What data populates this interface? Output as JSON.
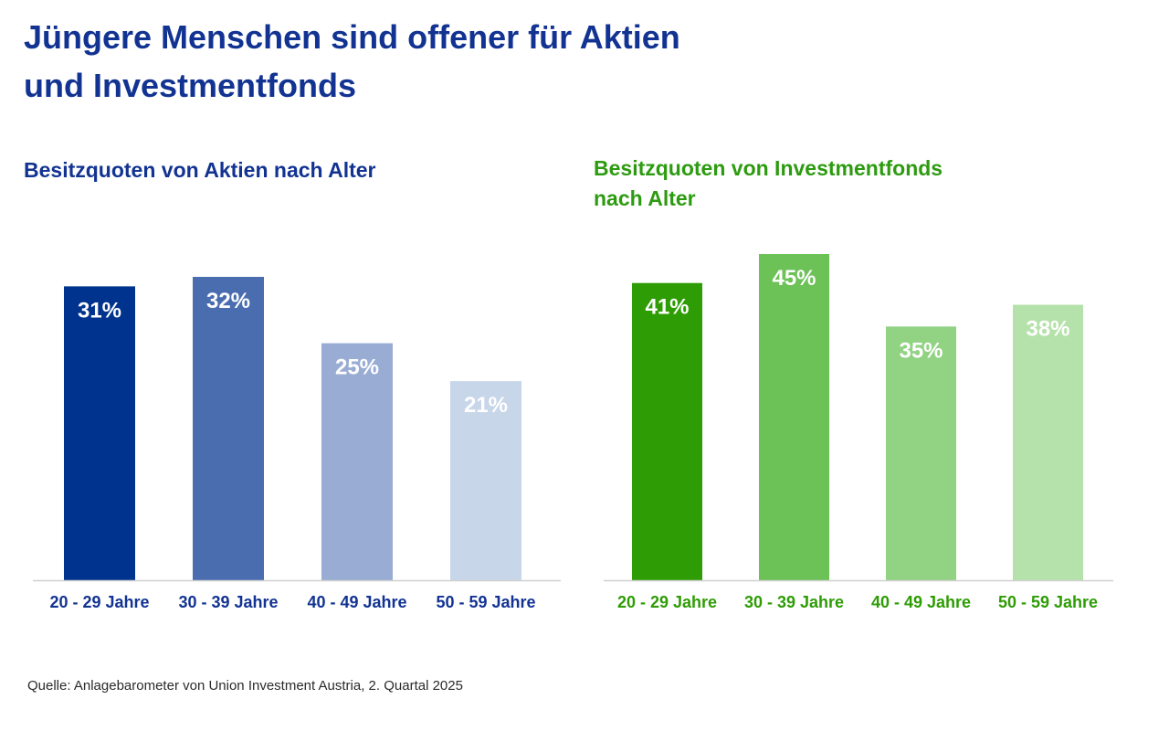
{
  "title": {
    "line1": "Jüngere Menschen sind offener für Aktien",
    "line2": "und Investmentfonds"
  },
  "source": "Quelle: Anlagebarometer von Union Investment Austria, 2. Quartal 2025",
  "chart_data": [
    {
      "type": "bar",
      "title_lines": [
        "Besitzquoten von Aktien nach Alter"
      ],
      "categories": [
        "20 - 29 Jahre",
        "30 - 39 Jahre",
        "40 - 49 Jahre",
        "50 - 59 Jahre"
      ],
      "values": [
        31,
        32,
        25,
        21
      ],
      "value_labels": [
        "31%",
        "32%",
        "25%",
        "21%"
      ],
      "unit": "%",
      "ylim": [
        0,
        32
      ],
      "xlabel": "",
      "ylabel": "",
      "grid": false,
      "legend": false,
      "colors": [
        "#00338d",
        "#4a6db0",
        "#99acd3",
        "#c8d6e9"
      ],
      "label_color": "#ffffff",
      "tick_color": "#123392",
      "axis_color": "#d0d0d0"
    },
    {
      "type": "bar",
      "title_lines": [
        "Besitzquoten von Investmentfonds",
        "nach Alter"
      ],
      "categories": [
        "20 - 29 Jahre",
        "30 - 39 Jahre",
        "40 - 49 Jahre",
        "50 - 59 Jahre"
      ],
      "values": [
        41,
        45,
        35,
        38
      ],
      "value_labels": [
        "41%",
        "45%",
        "35%",
        "38%"
      ],
      "unit": "%",
      "ylim": [
        0,
        45
      ],
      "xlabel": "",
      "ylabel": "",
      "grid": false,
      "legend": false,
      "colors": [
        "#2e9c05",
        "#6cc157",
        "#91d283",
        "#b5e2aa"
      ],
      "label_color": "#ffffff",
      "tick_color": "#2e9c05",
      "axis_color": "#d0d0d0"
    }
  ]
}
